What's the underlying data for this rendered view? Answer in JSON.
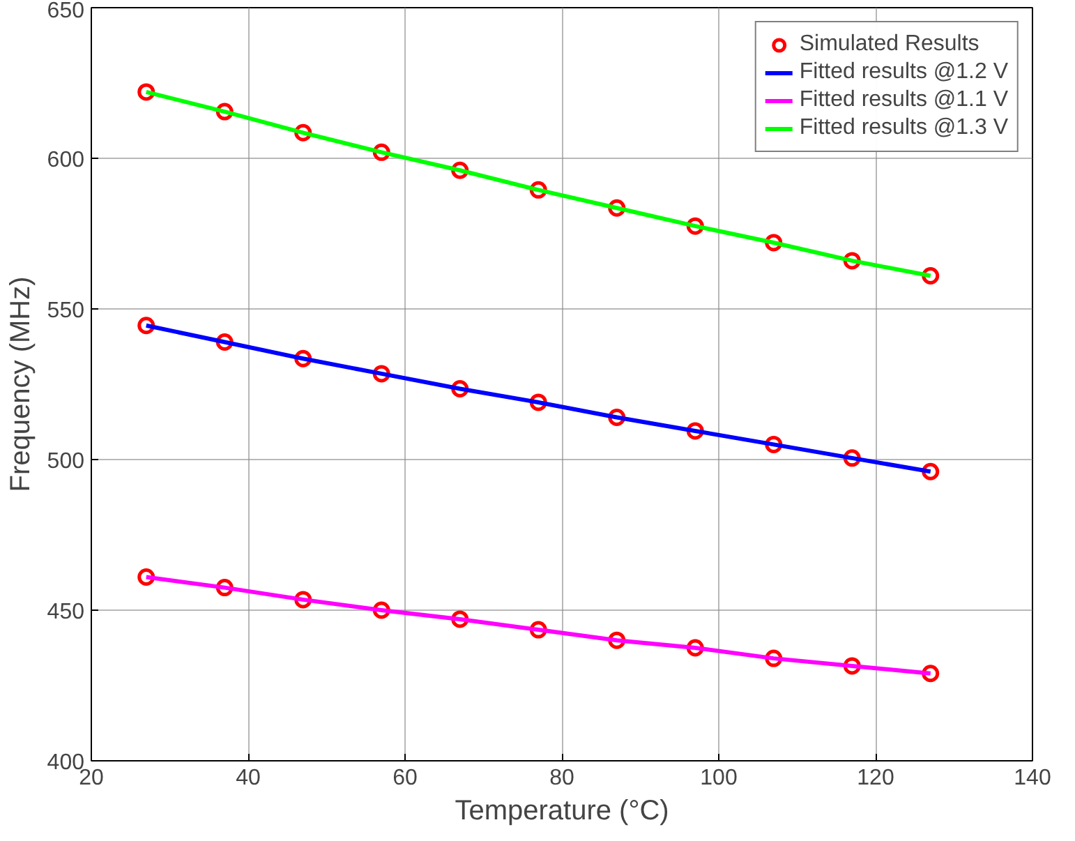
{
  "chart_data": {
    "type": "line",
    "xlabel": "Temperature (°C)",
    "ylabel": "Frequency (MHz)",
    "xlim": [
      20,
      140
    ],
    "xticks": [
      20,
      40,
      60,
      80,
      100,
      120,
      140
    ],
    "ylim": [
      400,
      650
    ],
    "yticks": [
      400,
      450,
      500,
      550,
      600,
      650
    ],
    "grid": true,
    "legend": "top right",
    "line_style": "solid",
    "x": [
      27,
      37,
      47,
      57,
      67,
      77,
      87,
      97,
      107,
      117,
      127
    ],
    "series": [
      {
        "name": "Simulated Results",
        "type": "scatter",
        "marker": "circle",
        "color": "#ff0000",
        "x": [
          27,
          37,
          47,
          57,
          67,
          77,
          87,
          97,
          107,
          117,
          127,
          27,
          37,
          47,
          57,
          67,
          77,
          87,
          97,
          107,
          117,
          127,
          27,
          37,
          47,
          57,
          67,
          77,
          87,
          97,
          107,
          117,
          127
        ],
        "values": [
          622,
          615.5,
          608.5,
          602,
          596,
          589.5,
          583.5,
          577.5,
          572,
          566,
          561,
          544.5,
          539,
          533.5,
          528.5,
          523.5,
          519,
          514,
          509.5,
          505,
          500.5,
          496,
          461,
          457.5,
          453.5,
          450,
          447,
          443.5,
          440,
          437.5,
          434,
          431.5,
          429
        ]
      },
      {
        "name": "Fitted results @1.2 V",
        "color": "#0000ff",
        "values": [
          544.5,
          539,
          533.5,
          528.5,
          523.5,
          519,
          514,
          509.5,
          505,
          500.5,
          496
        ]
      },
      {
        "name": "Fitted results @1.1 V",
        "color": "#ff00ff",
        "values": [
          461,
          457.5,
          453.5,
          450,
          447,
          443.5,
          440,
          437.5,
          434,
          431.5,
          429
        ]
      },
      {
        "name": "Fitted results @1.3 V",
        "color": "#00ff00",
        "values": [
          622,
          615.5,
          608.5,
          602,
          596,
          589.5,
          583.5,
          577.5,
          572,
          566,
          561
        ]
      }
    ]
  }
}
